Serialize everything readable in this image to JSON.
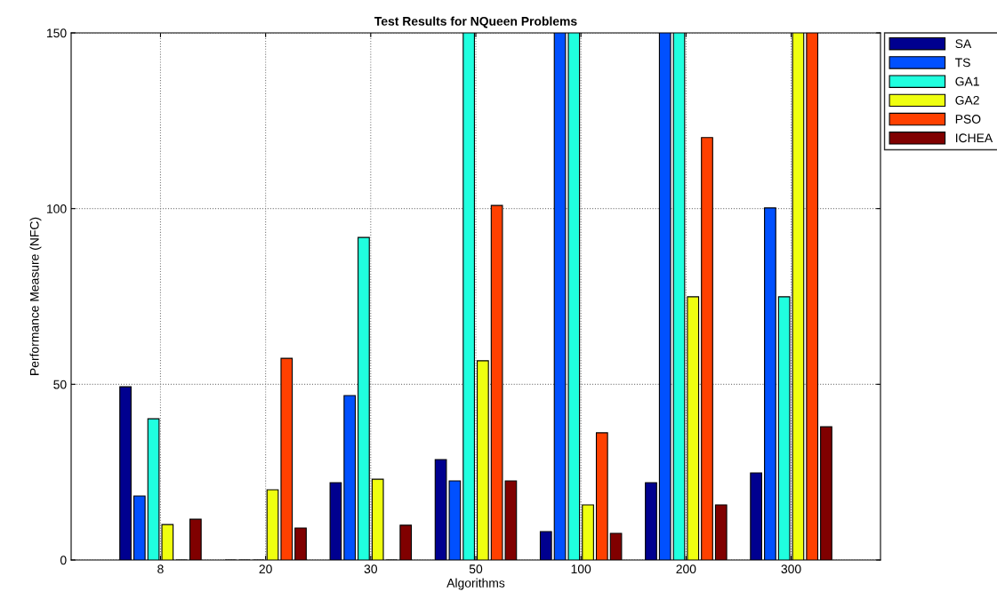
{
  "chart_data": {
    "type": "bar",
    "title": "Test Results for NQueen Problems",
    "xlabel": "Algorithms",
    "ylabel": "Performance Measure (NFC)",
    "categories": [
      "8",
      "20",
      "30",
      "50",
      "100",
      "200",
      "300"
    ],
    "series": [
      {
        "name": "SA",
        "color": "#00008f",
        "values": [
          49.3,
          0,
          22,
          28.6,
          8.1,
          22,
          24.8
        ]
      },
      {
        "name": "TS",
        "color": "#0050ff",
        "values": [
          18.2,
          0,
          46.8,
          22.5,
          150,
          150,
          100.2
        ]
      },
      {
        "name": "GA1",
        "color": "#20ffdf",
        "values": [
          40.2,
          0,
          91.8,
          150,
          150,
          150,
          74.9
        ]
      },
      {
        "name": "GA2",
        "color": "#efff10",
        "values": [
          10.1,
          20,
          23,
          56.7,
          15.7,
          74.9,
          150
        ]
      },
      {
        "name": "PSO",
        "color": "#ff4000",
        "values": [
          0,
          57.4,
          0,
          100.9,
          36.2,
          120.2,
          150
        ]
      },
      {
        "name": "ICHEA",
        "color": "#800000",
        "values": [
          11.6,
          9.1,
          9.9,
          22.5,
          7.6,
          15.7,
          37.9
        ]
      }
    ],
    "ylim": [
      0,
      150
    ],
    "yticks": [
      0,
      50,
      100,
      150
    ],
    "grid": true,
    "legend": "top right"
  }
}
